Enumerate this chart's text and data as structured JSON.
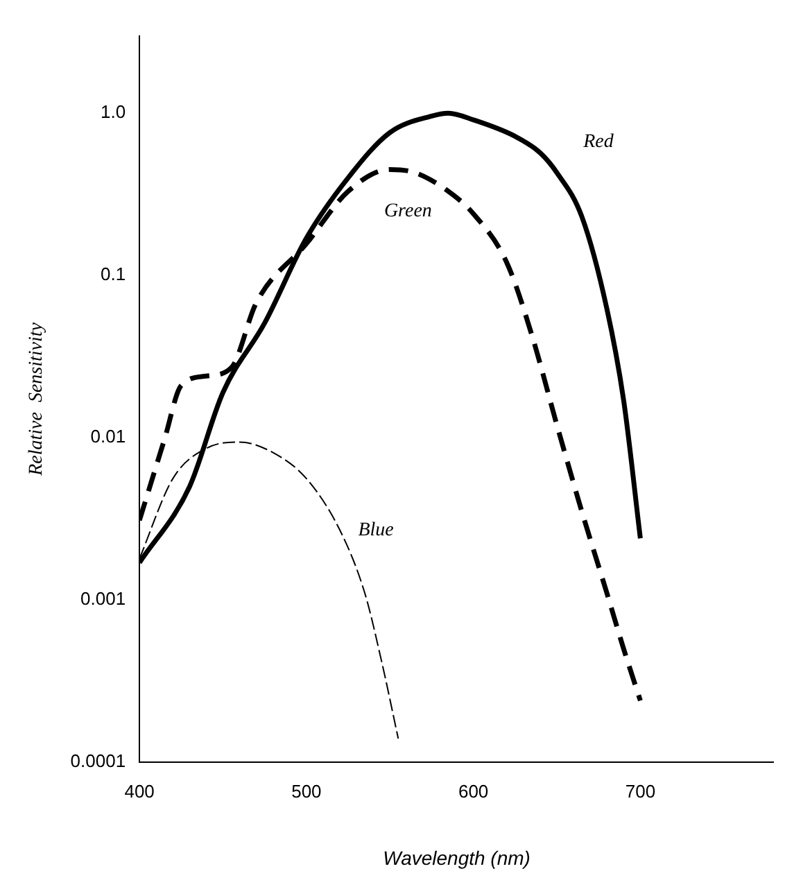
{
  "chart_data": {
    "type": "line",
    "xlabel": "Wavelength (nm)",
    "ylabel": "Relative  Sensitivity",
    "log": "y",
    "legend": false,
    "grid": false,
    "marker": "none",
    "xlim": [
      400,
      780
    ],
    "xticks": [
      400,
      500,
      600,
      700
    ],
    "ylim": [
      0.0001,
      3
    ],
    "yticks": [
      0.0001,
      0.001,
      0.01,
      0.1,
      {
        "value": 1,
        "label": "1.0"
      }
    ],
    "series": [
      {
        "name": "Red",
        "color": "#000000",
        "line_style": "solid",
        "x": [
          400,
          430,
          450,
          475,
          500,
          525,
          550,
          575,
          585,
          600,
          625,
          640,
          650,
          665,
          680,
          690,
          700
        ],
        "values": [
          0.0017,
          0.005,
          0.019,
          0.051,
          0.17,
          0.4,
          0.76,
          0.96,
          1.0,
          0.91,
          0.72,
          0.57,
          0.43,
          0.23,
          0.062,
          0.017,
          0.0024
        ]
      },
      {
        "name": "Green",
        "color": "#000000",
        "line_style": "dashed",
        "x": [
          400,
          415,
          425,
          440,
          455,
          470,
          500,
          525,
          550,
          565,
          585,
          600,
          620,
          635,
          650,
          665,
          680,
          690,
          700
        ],
        "values": [
          0.0031,
          0.0098,
          0.021,
          0.024,
          0.027,
          0.068,
          0.157,
          0.33,
          0.45,
          0.43,
          0.33,
          0.24,
          0.12,
          0.043,
          0.012,
          0.0035,
          0.0011,
          0.0005,
          0.00024
        ]
      },
      {
        "name": "Blue",
        "color": "#000000",
        "line_style": "dashed",
        "x": [
          400,
          420,
          440,
          460,
          480,
          500,
          520,
          535,
          545,
          555
        ],
        "values": [
          0.0018,
          0.0056,
          0.0086,
          0.0094,
          0.0081,
          0.0056,
          0.0027,
          0.0011,
          0.00042,
          0.00014
        ]
      }
    ]
  }
}
